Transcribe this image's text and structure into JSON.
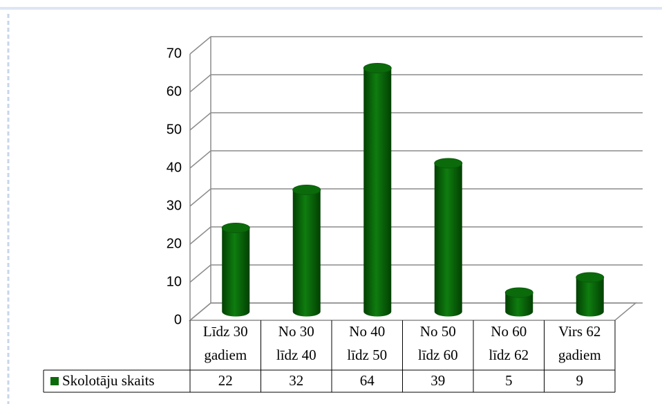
{
  "chart_data": {
    "type": "bar3d",
    "categories": [
      [
        "Līdz 30",
        "gadiem"
      ],
      [
        "No 30",
        "līdz 40"
      ],
      [
        "No 40",
        "līdz 50"
      ],
      [
        "No 50",
        "līdz 60"
      ],
      [
        "No 60",
        "līdz 62"
      ],
      [
        "Virs 62",
        "gadiem"
      ]
    ],
    "series": [
      {
        "name": "Skolotāju skaits",
        "color": "#0b6b0b",
        "values": [
          22,
          32,
          64,
          39,
          5,
          9
        ]
      }
    ],
    "ylim": [
      0,
      70
    ],
    "yticks": [
      0,
      10,
      20,
      30,
      40,
      50,
      60,
      70
    ],
    "grid": true
  }
}
